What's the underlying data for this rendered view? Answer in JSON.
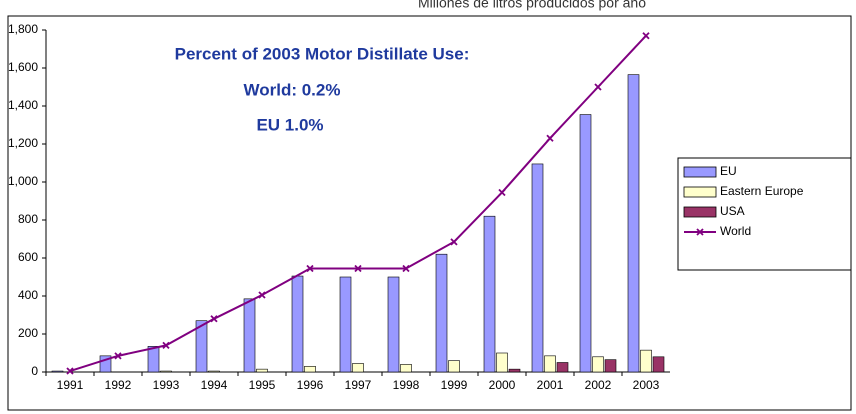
{
  "chart_data": {
    "type": "bar",
    "title": "Millones de litros producidos por año",
    "annotations": [
      "Percent of 2003 Motor Distillate Use:",
      "World: 0.2%",
      "EU 1.0%"
    ],
    "categories": [
      "1991",
      "1992",
      "1993",
      "1994",
      "1995",
      "1996",
      "1997",
      "1998",
      "1999",
      "2000",
      "2001",
      "2002",
      "2003"
    ],
    "series": [
      {
        "name": "EU",
        "type": "bar",
        "color": "#9999ff",
        "values": [
          5,
          85,
          135,
          270,
          385,
          505,
          500,
          500,
          620,
          820,
          1095,
          1355,
          1565
        ]
      },
      {
        "name": "Eastern Europe",
        "type": "bar",
        "color": "#ffffcc",
        "values": [
          0,
          0,
          5,
          5,
          15,
          30,
          45,
          40,
          60,
          100,
          85,
          80,
          115
        ]
      },
      {
        "name": "USA",
        "type": "bar",
        "color": "#993366",
        "values": [
          0,
          0,
          0,
          0,
          0,
          0,
          0,
          0,
          0,
          15,
          50,
          65,
          80
        ]
      },
      {
        "name": "World",
        "type": "line",
        "color": "#800080",
        "values": [
          5,
          85,
          140,
          280,
          405,
          545,
          545,
          545,
          685,
          945,
          1230,
          1500,
          1770
        ]
      }
    ],
    "ylim": [
      0,
      1800
    ],
    "yticks": [
      0,
      200,
      400,
      600,
      800,
      {
        "value": 1000,
        "label": "1,000"
      },
      {
        "value": 1200,
        "label": "1,200"
      },
      {
        "value": 1400,
        "label": "1,400"
      },
      {
        "value": 1600,
        "label": "1,600"
      },
      {
        "value": 1800,
        "label": "1,800"
      }
    ],
    "grid": false,
    "legend": "right"
  }
}
